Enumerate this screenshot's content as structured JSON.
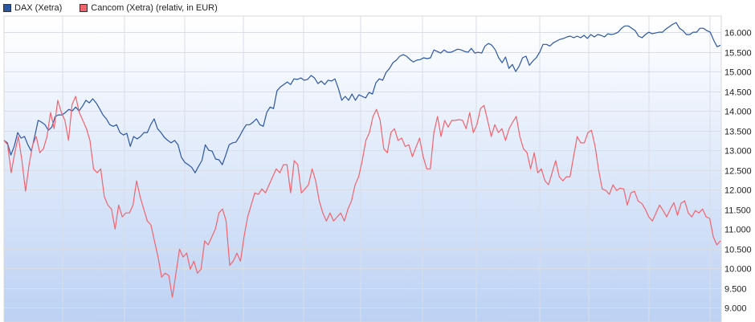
{
  "chart_data": {
    "type": "line",
    "title": "",
    "xlabel": "",
    "ylabel": "",
    "ylim": [
      8640,
      16410
    ],
    "y_ticks": [
      16000,
      15500,
      15000,
      14500,
      14000,
      13500,
      13000,
      12500,
      12000,
      11500,
      11000,
      10500,
      10000,
      9500,
      9000
    ],
    "y_tick_labels": [
      "16.000",
      "15.500",
      "15.000",
      "14.500",
      "14.000",
      "13.500",
      "13.000",
      "12.500",
      "12.000",
      "11.500",
      "11.000",
      "10.500",
      "10.000",
      "9.500",
      "9.000"
    ],
    "grid": true,
    "legend_position": "top-left",
    "series": [
      {
        "name": "DAX (Xetra)",
        "color": "#2b56a4",
        "values": [
          13250,
          13190,
          12880,
          13100,
          13450,
          13310,
          13350,
          13140,
          12980,
          13350,
          13760,
          13715,
          13650,
          13510,
          13590,
          13860,
          13900,
          13900,
          13960,
          14040,
          14000,
          14100,
          14000,
          14120,
          14270,
          14205,
          14310,
          14205,
          14060,
          13900,
          13800,
          13650,
          13610,
          13650,
          13450,
          13390,
          13430,
          13100,
          13350,
          13290,
          13350,
          13450,
          13450,
          13650,
          13800,
          13550,
          13450,
          13330,
          13250,
          13190,
          13250,
          13140,
          12820,
          12695,
          12635,
          12570,
          12430,
          12590,
          12740,
          13140,
          13000,
          12980,
          12780,
          12760,
          12635,
          12880,
          13140,
          13190,
          13210,
          13350,
          13510,
          13650,
          13650,
          13715,
          13800,
          13650,
          13610,
          13960,
          14100,
          14060,
          14510,
          14610,
          14670,
          14735,
          14670,
          14815,
          14800,
          14840,
          14780,
          14800,
          14900,
          14840,
          14695,
          14760,
          14670,
          14780,
          14760,
          14815,
          14570,
          14270,
          14370,
          14270,
          14430,
          14270,
          14410,
          14370,
          14330,
          14470,
          14430,
          14715,
          14815,
          14780,
          14980,
          15080,
          15225,
          15290,
          15390,
          15430,
          15390,
          15305,
          15245,
          15290,
          15305,
          15350,
          15330,
          15350,
          15550,
          15510,
          15470,
          15550,
          15490,
          15490,
          15530,
          15570,
          15550,
          15510,
          15490,
          15590,
          15470,
          15490,
          15470,
          15650,
          15715,
          15670,
          15550,
          15350,
          15225,
          15370,
          15080,
          15180,
          15000,
          15140,
          15350,
          15390,
          15160,
          15265,
          15350,
          15490,
          15690,
          15690,
          15650,
          15730,
          15775,
          15820,
          15840,
          15880,
          15900,
          15860,
          15900,
          15860,
          15920,
          15840,
          15940,
          15880,
          15940,
          15920,
          15880,
          15960,
          15940,
          15960,
          16000,
          16100,
          16160,
          16160,
          16100,
          16040,
          15900,
          15860,
          15940,
          16000,
          15960,
          15980,
          16000,
          16000,
          16080,
          16140,
          16200,
          16245,
          16100,
          16040,
          15940,
          15940,
          16000,
          16000,
          16100,
          16100,
          16040,
          16000,
          15800,
          15630,
          15670
        ]
      },
      {
        "name": "Cancom (Xetra) (relativ, in EUR)",
        "color": "#f0646e",
        "values": [
          13250,
          13140,
          12430,
          12940,
          13350,
          12740,
          11960,
          12635,
          13140,
          13350,
          12940,
          13040,
          13350,
          13960,
          13550,
          14270,
          13960,
          13760,
          13250,
          14165,
          14370,
          13960,
          13760,
          13550,
          13250,
          12530,
          12430,
          12530,
          11820,
          11610,
          11510,
          11000,
          11610,
          11310,
          11410,
          11410,
          11610,
          12225,
          11820,
          11510,
          11205,
          11105,
          10700,
          10290,
          9780,
          9880,
          9820,
          9270,
          9880,
          10490,
          10290,
          10390,
          9980,
          10185,
          9880,
          9980,
          10700,
          10600,
          10800,
          11000,
          11410,
          11510,
          11205,
          10080,
          10185,
          10390,
          10185,
          10800,
          11310,
          11610,
          11920,
          11880,
          12020,
          11920,
          12125,
          12330,
          12530,
          12430,
          12635,
          12635,
          11920,
          12740,
          12635,
          11920,
          12020,
          12125,
          12530,
          12225,
          11715,
          11410,
          11205,
          11410,
          11205,
          11310,
          11410,
          11205,
          11510,
          11715,
          12125,
          12330,
          12740,
          13250,
          13450,
          13860,
          14040,
          13760,
          13040,
          12940,
          13450,
          13550,
          13250,
          13310,
          13100,
          13140,
          12840,
          13080,
          13310,
          12840,
          12530,
          12530,
          13450,
          13860,
          13350,
          13760,
          13590,
          13760,
          13760,
          13780,
          13760,
          13550,
          13960,
          13450,
          13650,
          14060,
          14140,
          13760,
          13350,
          13650,
          13450,
          13550,
          13250,
          13550,
          13715,
          13860,
          13350,
          13040,
          12940,
          12530,
          12940,
          12430,
          12530,
          12225,
          12125,
          12430,
          12740,
          12330,
          12225,
          12330,
          12330,
          12840,
          13350,
          13190,
          13190,
          13450,
          13510,
          13100,
          12490,
          12020,
          11980,
          11880,
          12125,
          11980,
          12040,
          12020,
          11610,
          11920,
          11960,
          11715,
          11655,
          11510,
          11310,
          11205,
          11410,
          11610,
          11470,
          11310,
          11510,
          11670,
          11350,
          11655,
          11715,
          11410,
          11310,
          11470,
          11410,
          11510,
          11310,
          11270,
          10800,
          10600,
          10700
        ]
      }
    ]
  }
}
